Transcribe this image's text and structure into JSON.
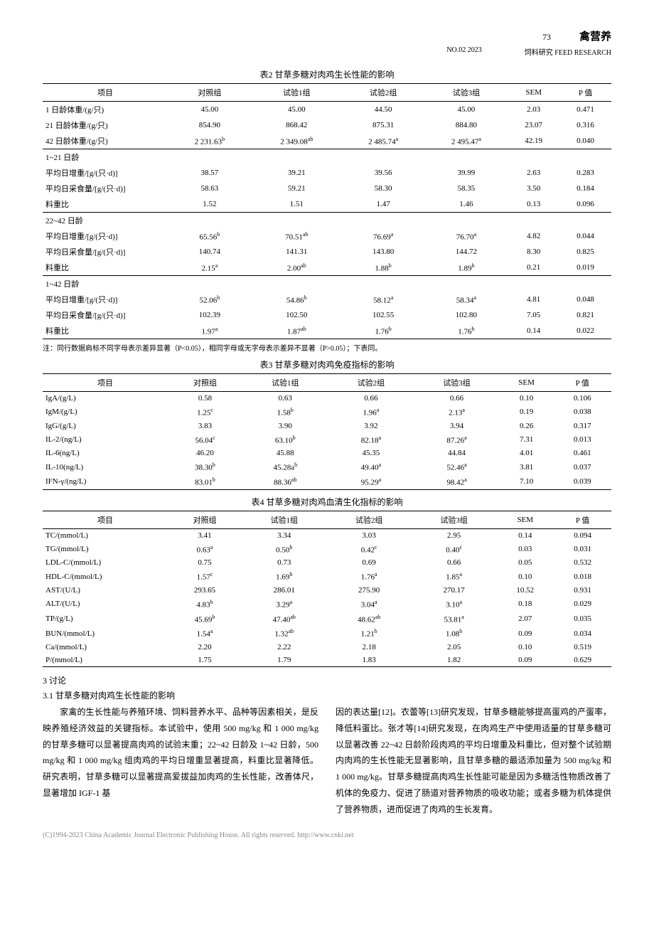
{
  "header": {
    "page": "73",
    "journal": "禽营养"
  },
  "subheader": {
    "issue": "NO.02 2023",
    "pub": "饲料研究 FEED RESEARCH"
  },
  "table2": {
    "title": "表2 甘草多糖对肉鸡生长性能的影响",
    "cols": [
      "项目",
      "对照组",
      "试验1组",
      "试验2组",
      "试验3组",
      "SEM",
      "P 值"
    ],
    "sections": [
      {
        "rows": [
          [
            "1 日龄体重/(g/只)",
            "45.00",
            "45.00",
            "44.50",
            "45.00",
            "2.03",
            "0.471"
          ],
          [
            "21 日龄体重/(g/只)",
            "854.90",
            "868.42",
            "875.31",
            "884.80",
            "23.07",
            "0.316"
          ],
          [
            "42 日龄体重/(g/只)",
            "2 231.63",
            "2 349.08",
            "2 485.74",
            "2 495.47",
            "42.19",
            "0.040"
          ]
        ],
        "sup": [
          "",
          "b",
          "ab",
          "a",
          "a",
          "",
          ""
        ]
      },
      {
        "label": "1~21 日龄",
        "rows": [
          [
            "平均日增重/[g/(只·d)]",
            "38.57",
            "39.21",
            "39.56",
            "39.99",
            "2.63",
            "0.283"
          ],
          [
            "平均日采食量/[g/(只·d)]",
            "58.63",
            "59.21",
            "58.30",
            "58.35",
            "3.50",
            "0.184"
          ],
          [
            "料重比",
            "1.52",
            "1.51",
            "1.47",
            "1.46",
            "0.13",
            "0.096"
          ]
        ]
      },
      {
        "label": "22~42 日龄",
        "rows": [
          [
            "平均日增重/[g/(只·d)]",
            "65.56",
            "70.51",
            "76.69",
            "76.70",
            "4.82",
            "0.044"
          ],
          [
            "平均日采食量/[g/(只·d)]",
            "140.74",
            "141.31",
            "143.80",
            "144.72",
            "8.30",
            "0.825"
          ],
          [
            "料重比",
            "2.15",
            "2.00",
            "1.88",
            "1.89",
            "0.21",
            "0.019"
          ]
        ],
        "sup2": [
          [
            "",
            "b",
            "ab",
            "a",
            "a",
            "",
            ""
          ],
          [
            "",
            "",
            "",
            "",
            "",
            "",
            ""
          ],
          [
            "",
            "a",
            "ab",
            "b",
            "b",
            "",
            ""
          ]
        ]
      },
      {
        "label": "1~42 日龄",
        "rows": [
          [
            "平均日增重/[g/(只·d)]",
            "52.06",
            "54.86",
            "58.12",
            "58.34",
            "4.81",
            "0.048"
          ],
          [
            "平均日采食量/[g/(只·d)]",
            "102.39",
            "102.50",
            "102.55",
            "102.80",
            "7.05",
            "0.821"
          ],
          [
            "料重比",
            "1.97",
            "1.87",
            "1.76",
            "1.76",
            "0.14",
            "0.022"
          ]
        ],
        "sup2": [
          [
            "",
            "b",
            "b",
            "a",
            "a",
            "",
            ""
          ],
          [
            "",
            "",
            "",
            "",
            "",
            "",
            ""
          ],
          [
            "",
            "a",
            "ab",
            "b",
            "b",
            "",
            ""
          ]
        ]
      }
    ],
    "note": "注：同行数据肩标不同字母表示差异显著（P<0.05），相同字母或无字母表示差异不显著（P>0.05）；下表同。"
  },
  "table3": {
    "title": "表3 甘草多糖对肉鸡免疫指标的影响",
    "cols": [
      "项目",
      "对照组",
      "试验1组",
      "试验2组",
      "试验3组",
      "SEM",
      "P 值"
    ],
    "rows": [
      [
        "IgA/(g/L)",
        "0.58",
        "0.63",
        "0.66",
        "0.66",
        "0.10",
        "0.106"
      ],
      [
        "IgM/(g/L)",
        "1.25",
        "1.58",
        "1.96",
        "2.13",
        "0.19",
        "0.038"
      ],
      [
        "IgG/(g/L)",
        "3.83",
        "3.90",
        "3.92",
        "3.94",
        "0.26",
        "0.317"
      ],
      [
        "IL-2/(ng/L)",
        "56.04",
        "63.10",
        "82.18",
        "87.26",
        "7.31",
        "0.013"
      ],
      [
        "IL-6(ng/L)",
        "46.20",
        "45.88",
        "45.35",
        "44.84",
        "4.01",
        "0.461"
      ],
      [
        "IL-10(ng/L)",
        "38.30",
        "45.28a",
        "49.40",
        "52.46",
        "3.81",
        "0.037"
      ],
      [
        "IFN-γ/(ng/L)",
        "83.01",
        "88.36",
        "95.29",
        "98.42",
        "7.10",
        "0.039"
      ]
    ],
    "sup": [
      [
        "",
        "",
        "",
        "",
        "",
        "",
        ""
      ],
      [
        "",
        "c",
        "b",
        "a",
        "a",
        "",
        ""
      ],
      [
        "",
        "",
        "",
        "",
        "",
        "",
        ""
      ],
      [
        "",
        "c",
        "b",
        "a",
        "a",
        "",
        ""
      ],
      [
        "",
        "",
        "",
        "",
        "",
        "",
        ""
      ],
      [
        "",
        "b",
        "b",
        "a",
        "a",
        "",
        ""
      ],
      [
        "",
        "b",
        "ab",
        "a",
        "a",
        "",
        ""
      ]
    ]
  },
  "table4": {
    "title": "表4 甘草多糖对肉鸡血清生化指标的影响",
    "cols": [
      "项目",
      "对照组",
      "试验1组",
      "试验2组",
      "试验3组",
      "SEM",
      "P 值"
    ],
    "rows": [
      [
        "TC/(mmol/L)",
        "3.41",
        "3.34",
        "3.03",
        "2.95",
        "0.14",
        "0.094"
      ],
      [
        "TG/(mmol/L)",
        "0.63",
        "0.50",
        "0.42",
        "0.40",
        "0.03",
        "0.031"
      ],
      [
        "LDL-C/(mmol/L)",
        "0.75",
        "0.73",
        "0.69",
        "0.66",
        "0.05",
        "0.532"
      ],
      [
        "HDL-C/(mmol/L)",
        "1.57",
        "1.69",
        "1.76",
        "1.85",
        "0.10",
        "0.018"
      ],
      [
        "AST/(U/L)",
        "293.65",
        "286.01",
        "275.90",
        "270.17",
        "10.52",
        "0.931"
      ],
      [
        "ALT/(U/L)",
        "4.83",
        "3.29",
        "3.04",
        "3.10",
        "0.18",
        "0.029"
      ],
      [
        "TP/(g/L)",
        "45.69",
        "47.40",
        "48.62",
        "53.81",
        "2.07",
        "0.035"
      ],
      [
        "BUN/(mmol/L)",
        "1.54",
        "1.32",
        "1.21",
        "1.08",
        "0.09",
        "0.034"
      ],
      [
        "Ca/(mmol/L)",
        "2.20",
        "2.22",
        "2.18",
        "2.05",
        "0.10",
        "0.519"
      ],
      [
        "P/(mmol/L)",
        "1.75",
        "1.79",
        "1.83",
        "1.82",
        "0.09",
        "0.629"
      ]
    ],
    "sup": [
      [
        "",
        "",
        "",
        "",
        "",
        "",
        ""
      ],
      [
        "",
        "a",
        "b",
        "c",
        "c",
        "",
        ""
      ],
      [
        "",
        "",
        "",
        "",
        "",
        "",
        ""
      ],
      [
        "",
        "c",
        "b",
        "a",
        "a",
        "",
        ""
      ],
      [
        "",
        "",
        "",
        "",
        "",
        "",
        ""
      ],
      [
        "",
        "b",
        "a",
        "a",
        "a",
        "",
        ""
      ],
      [
        "",
        "b",
        "ab",
        "ab",
        "a",
        "",
        ""
      ],
      [
        "",
        "a",
        "ab",
        "b",
        "b",
        "",
        ""
      ],
      [
        "",
        "",
        "",
        "",
        "",
        "",
        ""
      ],
      [
        "",
        "",
        "",
        "",
        "",
        "",
        ""
      ]
    ]
  },
  "discussion": {
    "head": "3 讨论",
    "sub": "3.1 甘草多糖对肉鸡生长性能的影响",
    "left": "　　家禽的生长性能与养殖环境、饲料营养水平、品种等因素相关，是反映养殖经济效益的关键指标。本试验中，使用 500 mg/kg 和 1 000 mg/kg 的甘草多糖可以显著提高肉鸡的试验末重；22~42 日龄及 1~42 日龄，500 mg/kg 和 1 000 mg/kg 组肉鸡的平均日增重显著提高，料重比显著降低。研究表明，甘草多糖可以显著提高爱拔益加肉鸡的生长性能，改善体尺，显著增加 IGF-1 基",
    "right": "因的表达量[12]。衣蕾等[13]研究发现，甘草多糖能够提高蛋鸡的产蛋率，降低料蛋比。张才等[14]研究发现，在肉鸡生产中使用适量的甘草多糖可以显著改善 22~42 日龄阶段肉鸡的平均日增重及料重比，但对整个试验期内肉鸡的生长性能无显著影响，且甘草多糖的最适添加量为 500 mg/kg 和 1 000 mg/kg。甘草多糖提高肉鸡生长性能可能是因为多糖活性物质改善了机体的免疫力、促进了肠道对营养物质的吸收功能；或者多糖为机体提供了营养物质，进而促进了肉鸡的生长发育。"
  },
  "copyright": "(C)1994-2023 China Academic Journal Electronic Publishing House. All rights reserved.    http://www.cnki.net"
}
